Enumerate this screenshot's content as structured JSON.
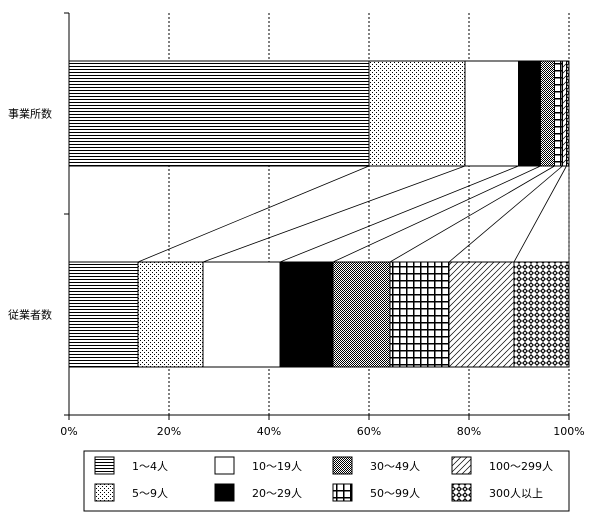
{
  "chart_data": {
    "type": "bar",
    "stacked": true,
    "percent": true,
    "orientation": "horizontal",
    "categories": [
      "事業所数",
      "従業者数"
    ],
    "xlim": [
      0,
      100
    ],
    "x_ticks": [
      "0%",
      "20%",
      "40%",
      "60%",
      "80%",
      "100%"
    ],
    "grid": true,
    "legend_position": "bottom",
    "series": [
      {
        "name": "1～4人",
        "values": [
          60.0,
          13.8
        ],
        "pattern": "hlines"
      },
      {
        "name": "5～9人",
        "values": [
          19.2,
          13.0
        ],
        "pattern": "dots-sparse"
      },
      {
        "name": "10～19人",
        "values": [
          10.7,
          15.4
        ],
        "pattern": "white"
      },
      {
        "name": "20～29人",
        "values": [
          4.4,
          10.6
        ],
        "pattern": "black"
      },
      {
        "name": "30～49人",
        "values": [
          2.8,
          11.4
        ],
        "pattern": "dots-dense"
      },
      {
        "name": "50～99人",
        "values": [
          1.6,
          11.8
        ],
        "pattern": "grid"
      },
      {
        "name": "100～299人",
        "values": [
          0.8,
          13.0
        ],
        "pattern": "diagonal"
      },
      {
        "name": "300人以上",
        "values": [
          0.5,
          11.0
        ],
        "pattern": "diamond"
      }
    ]
  }
}
